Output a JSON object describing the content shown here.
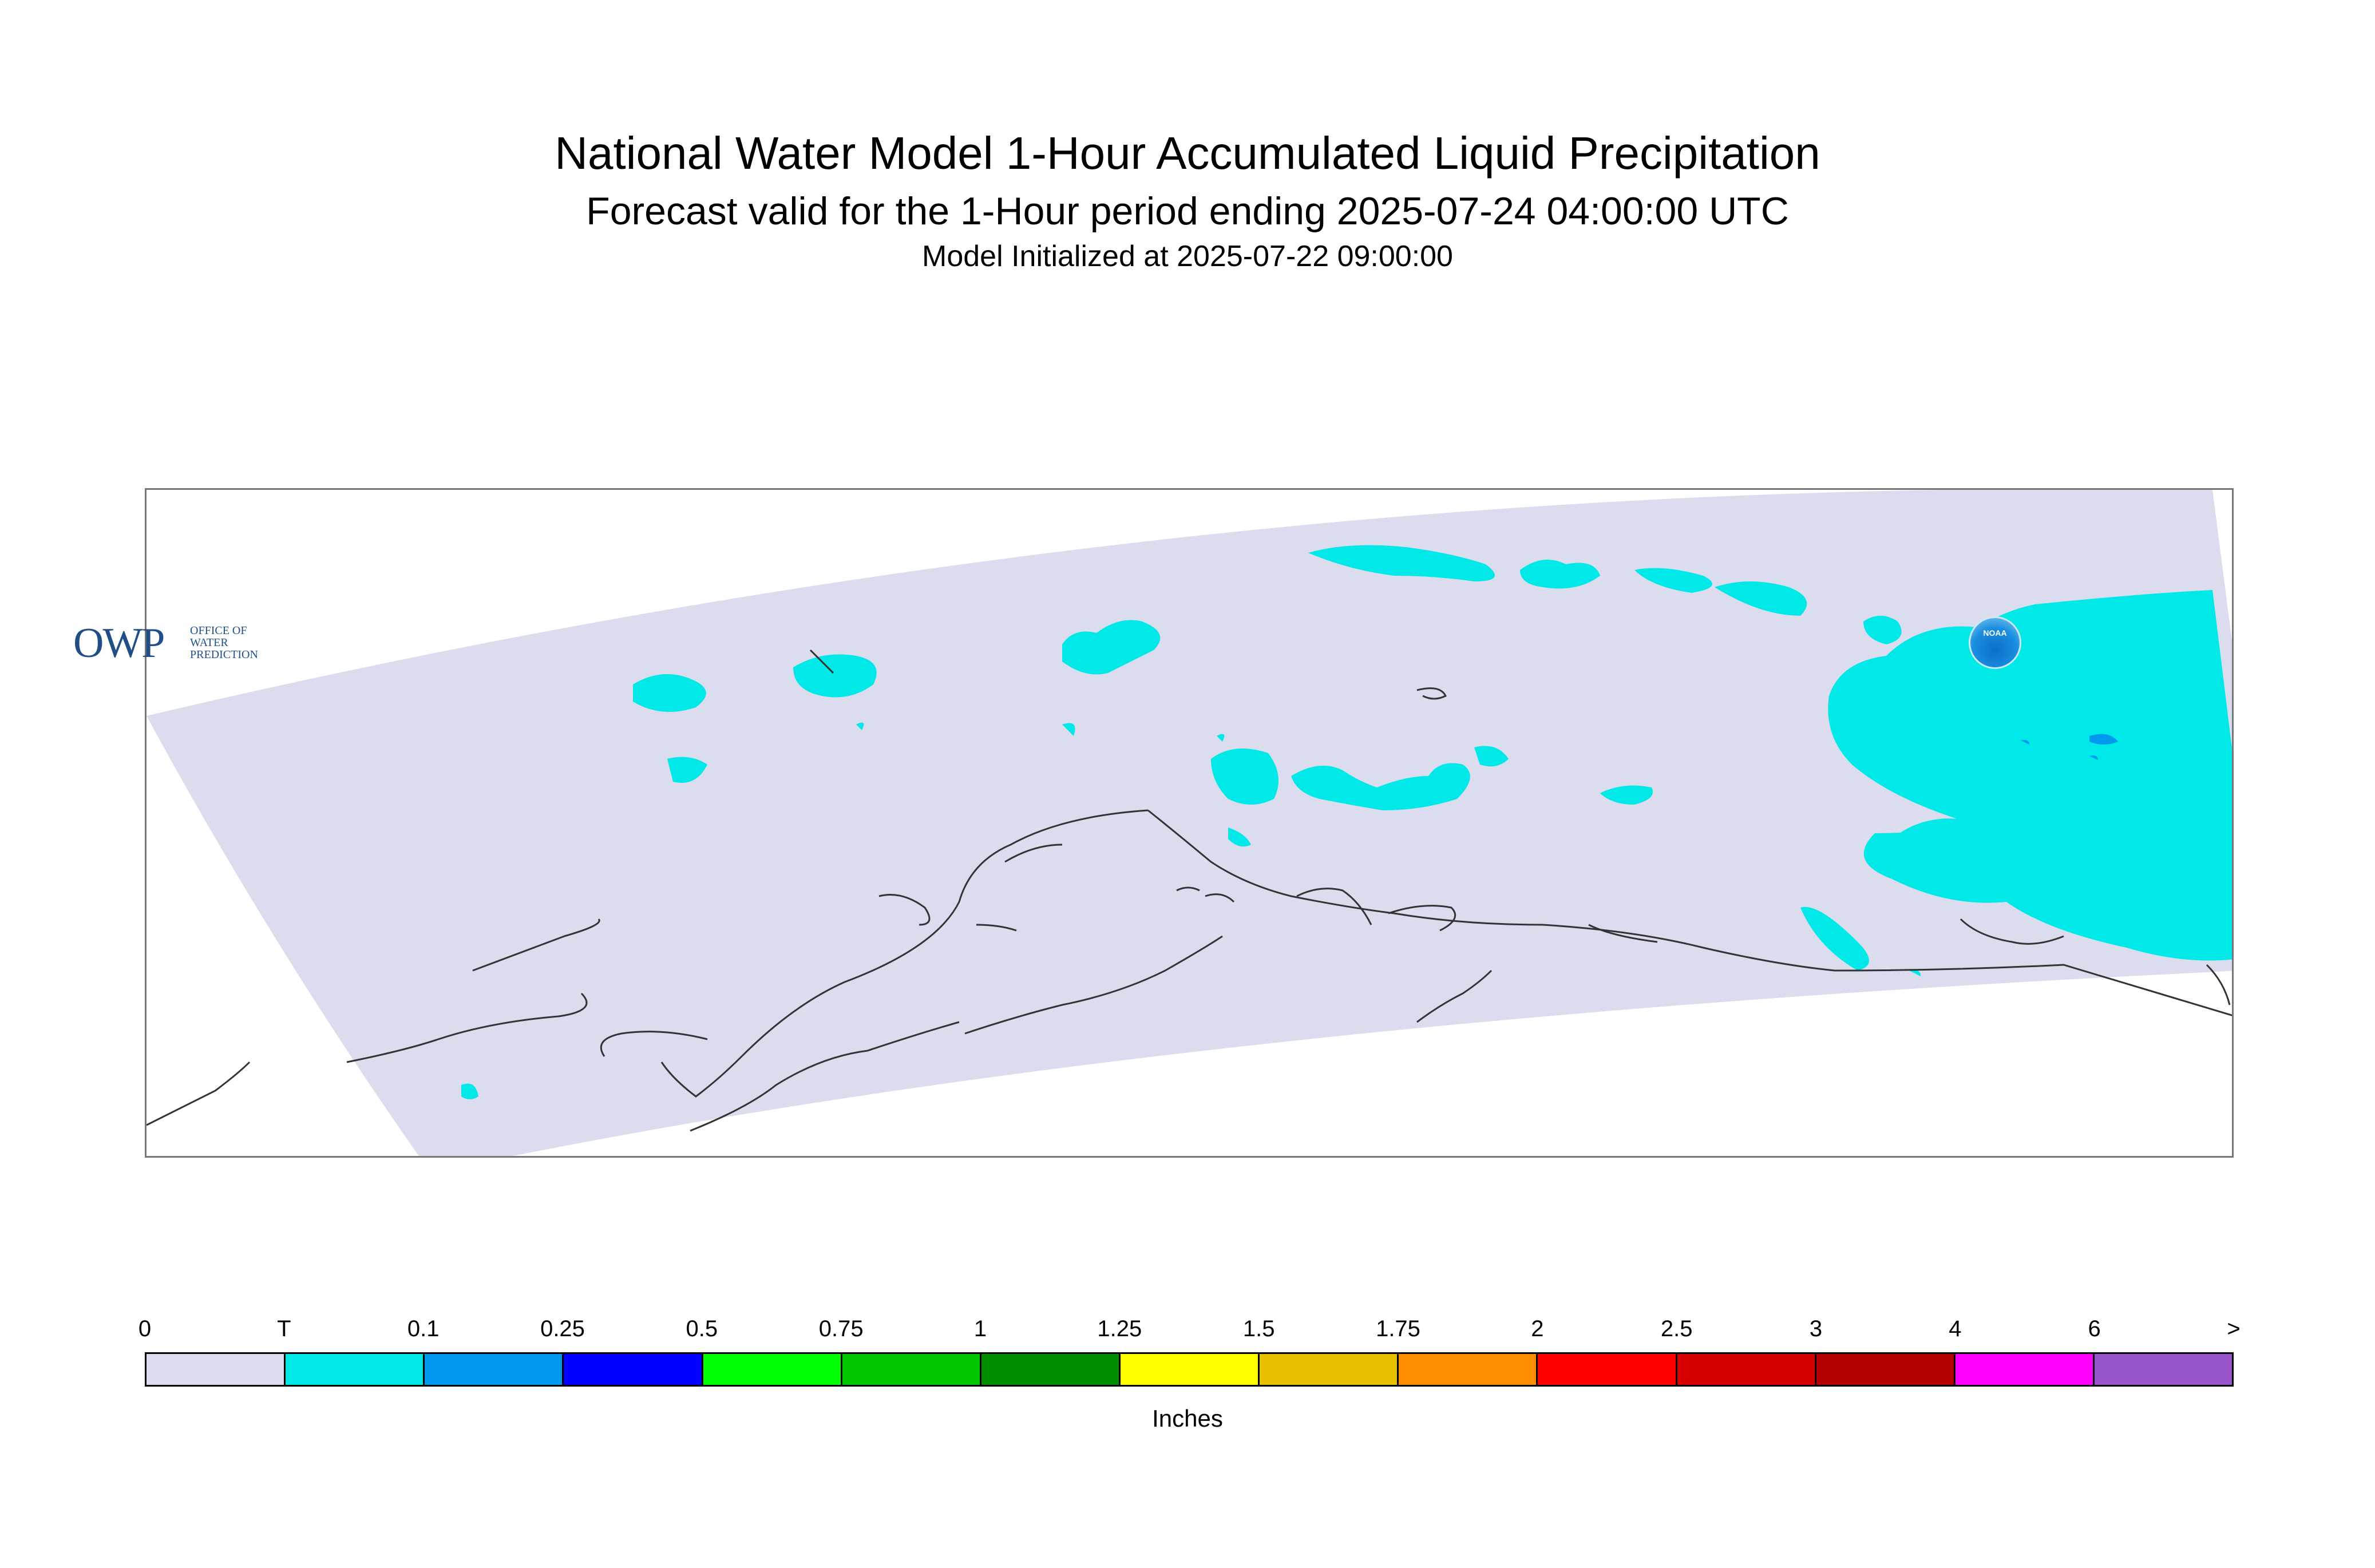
{
  "header": {
    "title": "National Water Model 1-Hour Accumulated Liquid Precipitation",
    "subtitle": "Forecast valid for the 1-Hour period ending 2025-07-24 04:00:00 UTC",
    "init": "Model Initialized at 2025-07-22 09:00:00"
  },
  "logos": {
    "owp_big": "OWP",
    "owp_line1": "OFFICE OF",
    "owp_line2": "WATER",
    "owp_line3": "PREDICTION",
    "noaa": "NOAA"
  },
  "legend": {
    "units": "Inches",
    "tick_labels": [
      "0",
      "T",
      "0.1",
      "0.25",
      "0.5",
      "0.75",
      "1",
      "1.25",
      "1.5",
      "1.75",
      "2",
      "2.5",
      "3",
      "4",
      "6",
      ">"
    ],
    "colors": [
      "#dcdcef",
      "#00e8e8",
      "#0099ee",
      "#0000ff",
      "#00ff00",
      "#00c600",
      "#008e00",
      "#ffff00",
      "#e7c000",
      "#ff8e00",
      "#ff0000",
      "#d60000",
      "#b40000",
      "#ff00ff",
      "#9955cc"
    ]
  },
  "map_colors": {
    "background": "#dcdcef",
    "trace": "#00e8e8",
    "light": "#0099ee",
    "coast": "#333333"
  }
}
